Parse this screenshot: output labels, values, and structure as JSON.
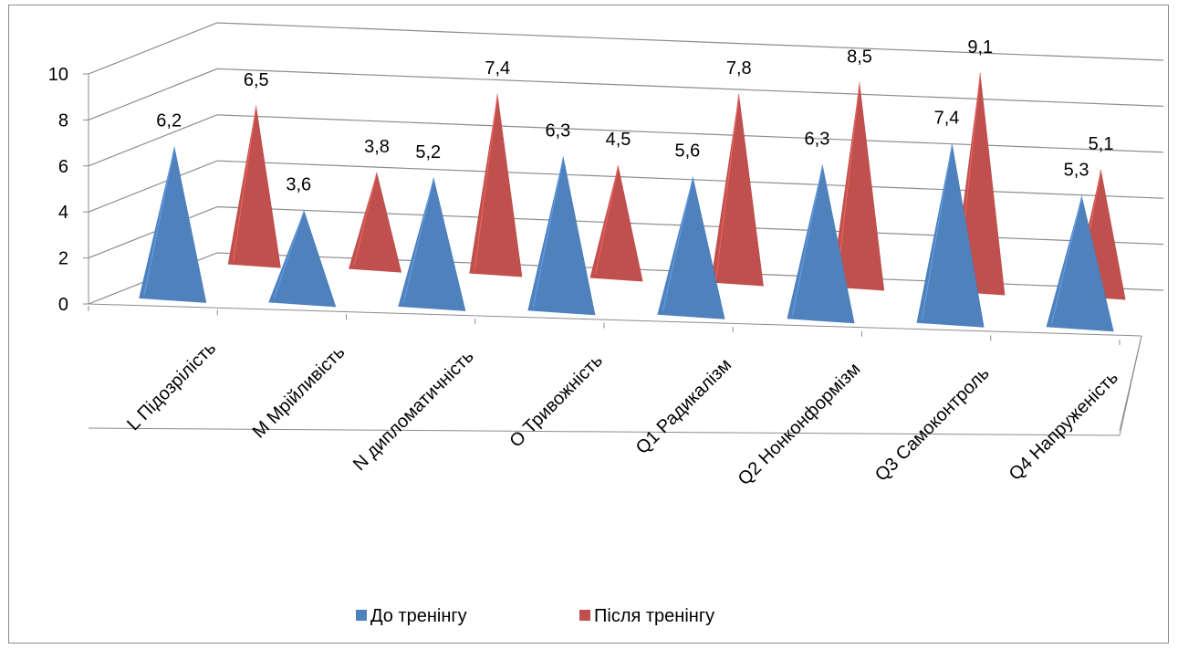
{
  "chart_data": {
    "type": "bar",
    "style": "3d-pyramid",
    "categories": [
      "L Підозрілість",
      "M Мрійливість",
      "N дипломатичність",
      "O Тривожність",
      "Q1 Радикалізм",
      "Q2 Нонконформізм",
      "Q3  Самоконтроль",
      "Q4 Напруженість"
    ],
    "series": [
      {
        "name": "До тренінгу",
        "values": [
          6.2,
          3.6,
          5.2,
          6.3,
          5.6,
          6.3,
          7.4,
          5.3
        ],
        "labels": [
          "6,2",
          "3,6",
          "5,2",
          "6,3",
          "5,6",
          "6,3",
          "7,4",
          "5,3"
        ],
        "color": "#4f81bd"
      },
      {
        "name": "Після тренінгу",
        "values": [
          6.5,
          3.8,
          7.4,
          4.5,
          7.8,
          8.5,
          9.1,
          5.1
        ],
        "labels": [
          "6,5",
          "3,8",
          "7,4",
          "4,5",
          "7,8",
          "8,5",
          "9,1",
          "5,1"
        ],
        "color": "#c0504d"
      }
    ],
    "yticks": [
      "0",
      "2",
      "4",
      "6",
      "8",
      "10"
    ],
    "ylim": [
      0,
      10
    ],
    "grid": true,
    "legend_position": "bottom"
  }
}
